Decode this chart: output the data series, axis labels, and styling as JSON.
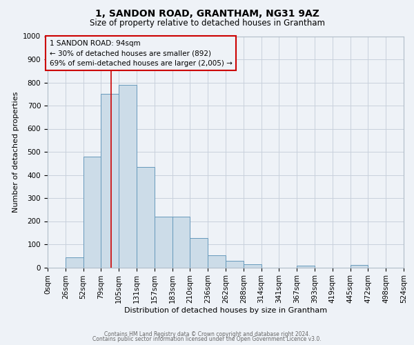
{
  "title": "1, SANDON ROAD, GRANTHAM, NG31 9AZ",
  "subtitle": "Size of property relative to detached houses in Grantham",
  "xlabel": "Distribution of detached houses by size in Grantham",
  "ylabel": "Number of detached properties",
  "bin_labels": [
    "0sqm",
    "26sqm",
    "52sqm",
    "79sqm",
    "105sqm",
    "131sqm",
    "157sqm",
    "183sqm",
    "210sqm",
    "236sqm",
    "262sqm",
    "288sqm",
    "314sqm",
    "341sqm",
    "367sqm",
    "393sqm",
    "419sqm",
    "445sqm",
    "472sqm",
    "498sqm",
    "524sqm"
  ],
  "bar_heights": [
    0,
    42,
    480,
    750,
    790,
    435,
    218,
    218,
    127,
    52,
    27,
    13,
    0,
    0,
    6,
    0,
    0,
    9,
    0,
    0
  ],
  "bar_color": "#ccdce8",
  "bar_edge_color": "#6699bb",
  "grid_color": "#c8d0dc",
  "background_color": "#eef2f7",
  "annotation_text_line1": "1 SANDON ROAD: 94sqm",
  "annotation_text_line2": "← 30% of detached houses are smaller (892)",
  "annotation_text_line3": "69% of semi-detached houses are larger (2,005) →",
  "annotation_box_edgecolor": "#cc0000",
  "property_line_color": "#cc0000",
  "property_line_bin": 3,
  "ylim": [
    0,
    1000
  ],
  "yticks": [
    0,
    100,
    200,
    300,
    400,
    500,
    600,
    700,
    800,
    900,
    1000
  ],
  "title_fontsize": 10,
  "subtitle_fontsize": 8.5,
  "xlabel_fontsize": 8,
  "ylabel_fontsize": 8,
  "tick_fontsize": 7.5,
  "footer_line1": "Contains HM Land Registry data © Crown copyright and database right 2024.",
  "footer_line2": "Contains public sector information licensed under the Open Government Licence v3.0.",
  "footer_fontsize": 5.5,
  "footer_color": "#666666"
}
